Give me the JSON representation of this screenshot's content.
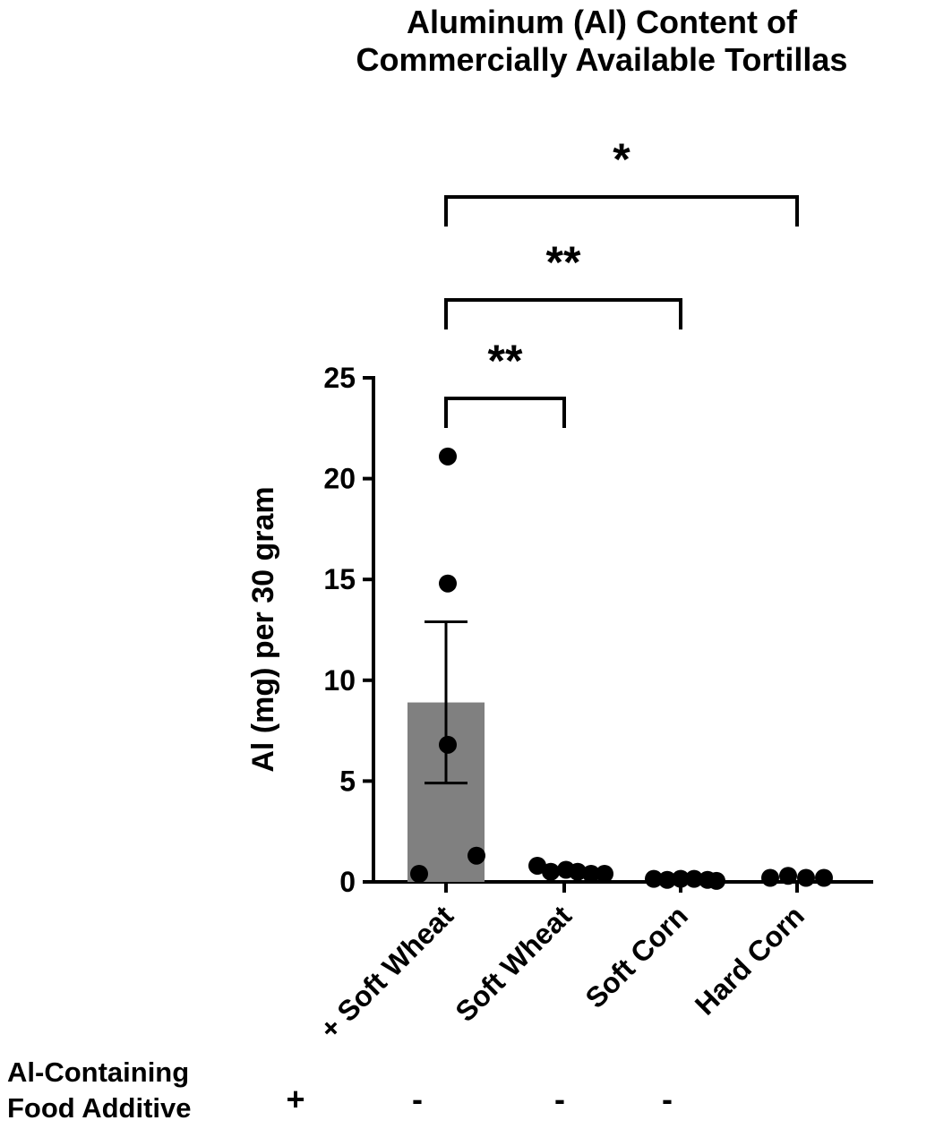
{
  "chart_data": {
    "type": "bar",
    "title_lines": [
      "Aluminum (Al) Content of",
      "Commercially Available Tortillas"
    ],
    "ylabel": "Al (mg) per 30 gram",
    "xlabel": "",
    "ylim": [
      0,
      25
    ],
    "yticks": [
      0,
      5,
      10,
      15,
      20,
      25
    ],
    "categories": [
      "+ Soft Wheat",
      "Soft Wheat",
      "Soft Corn",
      "Hard Corn"
    ],
    "bar_color": "#808080",
    "series": [
      {
        "values": [
          8.9,
          null,
          null,
          null
        ],
        "error_bars": [
          [
            4.9,
            12.9
          ],
          null,
          null,
          null
        ],
        "points": [
          [
            0.4,
            21.1,
            14.8,
            6.8,
            1.3
          ],
          [
            0.8,
            0.5,
            0.6,
            0.5,
            0.4,
            0.4
          ],
          [
            0.15,
            0.1,
            0.15,
            0.15,
            0.1,
            0.05
          ],
          [
            0.2,
            0.3,
            0.2,
            0.2
          ]
        ]
      }
    ],
    "significance": [
      {
        "from": "+ Soft Wheat",
        "to": "Soft Wheat",
        "label": "**"
      },
      {
        "from": "+ Soft Wheat",
        "to": "Soft Corn",
        "label": "**"
      },
      {
        "from": "+ Soft Wheat",
        "to": "Hard Corn",
        "label": "*"
      }
    ],
    "factor_row": {
      "label_lines": [
        "Al-Containing",
        "Food Additive"
      ],
      "values": [
        "+",
        "-",
        "-",
        "-"
      ]
    }
  }
}
